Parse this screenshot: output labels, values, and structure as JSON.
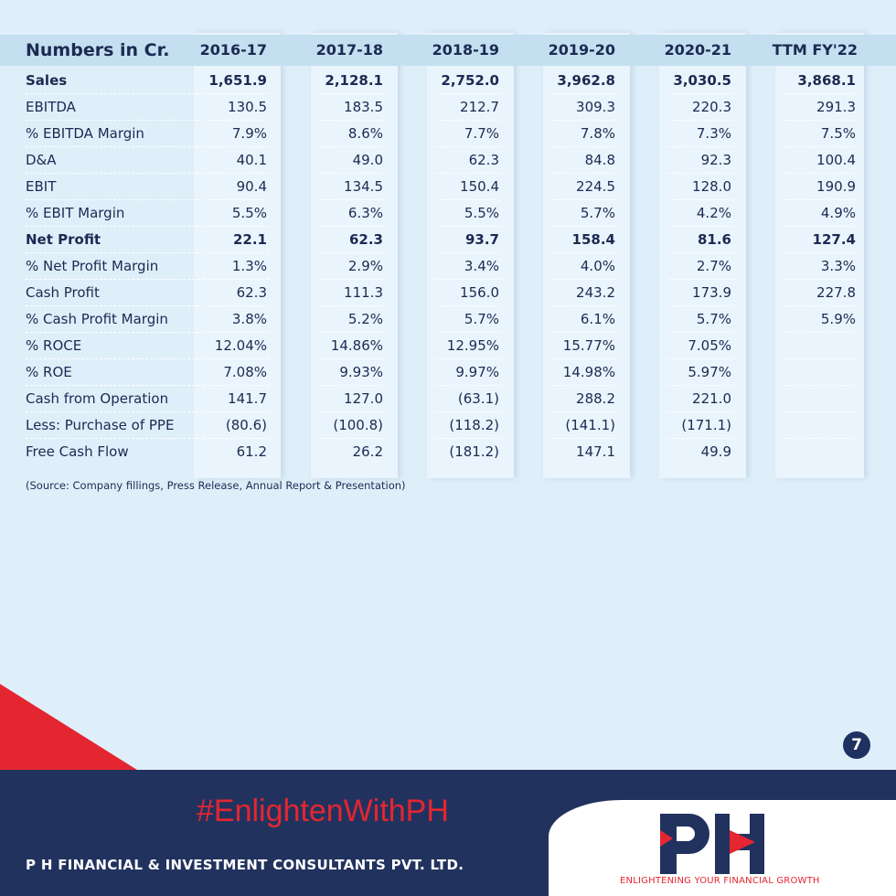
{
  "table": {
    "header": [
      "Numbers in Cr.",
      "2016-17",
      "2017-18",
      "2018-19",
      "2019-20",
      "2020-21",
      "TTM FY'22"
    ],
    "rows": [
      {
        "label": "Sales",
        "bold": true,
        "values": [
          "1,651.9",
          "2,128.1",
          "2,752.0",
          "3,962.8",
          "3,030.5",
          "3,868.1"
        ]
      },
      {
        "label": "EBITDA",
        "values": [
          "130.5",
          "183.5",
          "212.7",
          "309.3",
          "220.3",
          "291.3"
        ]
      },
      {
        "label": "% EBITDA Margin",
        "values": [
          "7.9%",
          "8.6%",
          "7.7%",
          "7.8%",
          "7.3%",
          "7.5%"
        ]
      },
      {
        "label": "D&A",
        "values": [
          "40.1",
          "49.0",
          "62.3",
          "84.8",
          "92.3",
          "100.4"
        ]
      },
      {
        "label": "EBIT",
        "values": [
          "90.4",
          "134.5",
          "150.4",
          "224.5",
          "128.0",
          "190.9"
        ]
      },
      {
        "label": "% EBIT Margin",
        "values": [
          "5.5%",
          "6.3%",
          "5.5%",
          "5.7%",
          "4.2%",
          "4.9%"
        ]
      },
      {
        "label": "Net Profit",
        "bold": true,
        "values": [
          "22.1",
          "62.3",
          "93.7",
          "158.4",
          "81.6",
          "127.4"
        ]
      },
      {
        "label": "% Net Profit Margin",
        "values": [
          "1.3%",
          "2.9%",
          "3.4%",
          "4.0%",
          "2.7%",
          "3.3%"
        ]
      },
      {
        "label": "Cash Profit",
        "values": [
          "62.3",
          "111.3",
          "156.0",
          "243.2",
          "173.9",
          "227.8"
        ]
      },
      {
        "label": "% Cash Profit Margin",
        "values": [
          "3.8%",
          "5.2%",
          "5.7%",
          "6.1%",
          "5.7%",
          "5.9%"
        ]
      },
      {
        "label": "% ROCE",
        "values": [
          "12.04%",
          "14.86%",
          "12.95%",
          "15.77%",
          "7.05%",
          ""
        ]
      },
      {
        "label": "% ROE",
        "values": [
          "7.08%",
          "9.93%",
          "9.97%",
          "14.98%",
          "5.97%",
          ""
        ]
      },
      {
        "label": "Cash from Operation",
        "values": [
          "141.7",
          "127.0",
          "(63.1)",
          "288.2",
          "221.0",
          ""
        ]
      },
      {
        "label": "Less: Purchase of PPE",
        "values": [
          "(80.6)",
          "(100.8)",
          "(118.2)",
          "(141.1)",
          "(171.1)",
          ""
        ]
      },
      {
        "label": "Free Cash Flow",
        "values": [
          "61.2",
          "26.2",
          "(181.2)",
          "147.1",
          "49.9",
          ""
        ]
      }
    ]
  },
  "source": "(Source: Company fillings, Press Release, Annual Report & Presentation)",
  "page_number": "7",
  "footer": {
    "hashtag": "#EnlightenWithPH",
    "company": "P H FINANCIAL & INVESTMENT CONSULTANTS PVT. LTD.",
    "logo_text": "PH",
    "tagline": "ENLIGHTENING YOUR FINANCIAL GROWTH"
  },
  "colors": {
    "navy": "#22325e",
    "red": "#e42630",
    "bg": "#dfeffa"
  }
}
